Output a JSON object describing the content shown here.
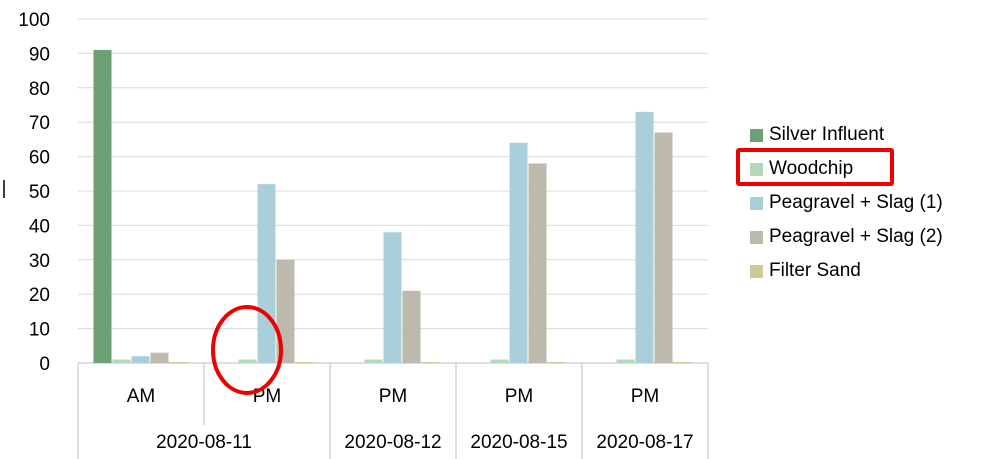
{
  "chart_data": {
    "type": "bar",
    "title": "",
    "xlabel": "",
    "ylabel": "",
    "ylim": [
      0,
      100
    ],
    "yticks": [
      0,
      10,
      20,
      30,
      40,
      50,
      60,
      70,
      80,
      90,
      100
    ],
    "grid": "horizontal",
    "legend_position": "right",
    "categories": [
      {
        "label": "AM",
        "group": "2020-08-11"
      },
      {
        "label": "PM",
        "group": "2020-08-11"
      },
      {
        "label": "PM",
        "group": "2020-08-12"
      },
      {
        "label": "PM",
        "group": "2020-08-15"
      },
      {
        "label": "PM",
        "group": "2020-08-17"
      }
    ],
    "groups": [
      "2020-08-11",
      "2020-08-12",
      "2020-08-15",
      "2020-08-17"
    ],
    "series": [
      {
        "name": "Silver Influent",
        "color": "#6ea076",
        "values": [
          91,
          0,
          0,
          0,
          0
        ]
      },
      {
        "name": "Woodchip",
        "color": "#b3d9b8",
        "values": [
          1,
          1,
          1,
          1,
          1
        ]
      },
      {
        "name": "Peagravel + Slag (1)",
        "color": "#a9d0da",
        "values": [
          2,
          52,
          38,
          64,
          73
        ]
      },
      {
        "name": "Peagravel + Slag (2)",
        "color": "#bdbaad",
        "values": [
          3,
          30,
          21,
          58,
          67
        ]
      },
      {
        "name": "Filter Sand",
        "color": "#cfc99a",
        "values": [
          0.3,
          0.3,
          0.3,
          0.3,
          0.3
        ]
      }
    ],
    "annotations": [
      {
        "kind": "highlight-ellipse",
        "target": "2020-08-11 PM Woodchip",
        "color": "#ee0000"
      },
      {
        "kind": "highlight-box",
        "target": "legend Woodchip",
        "color": "#ee0000"
      }
    ]
  }
}
